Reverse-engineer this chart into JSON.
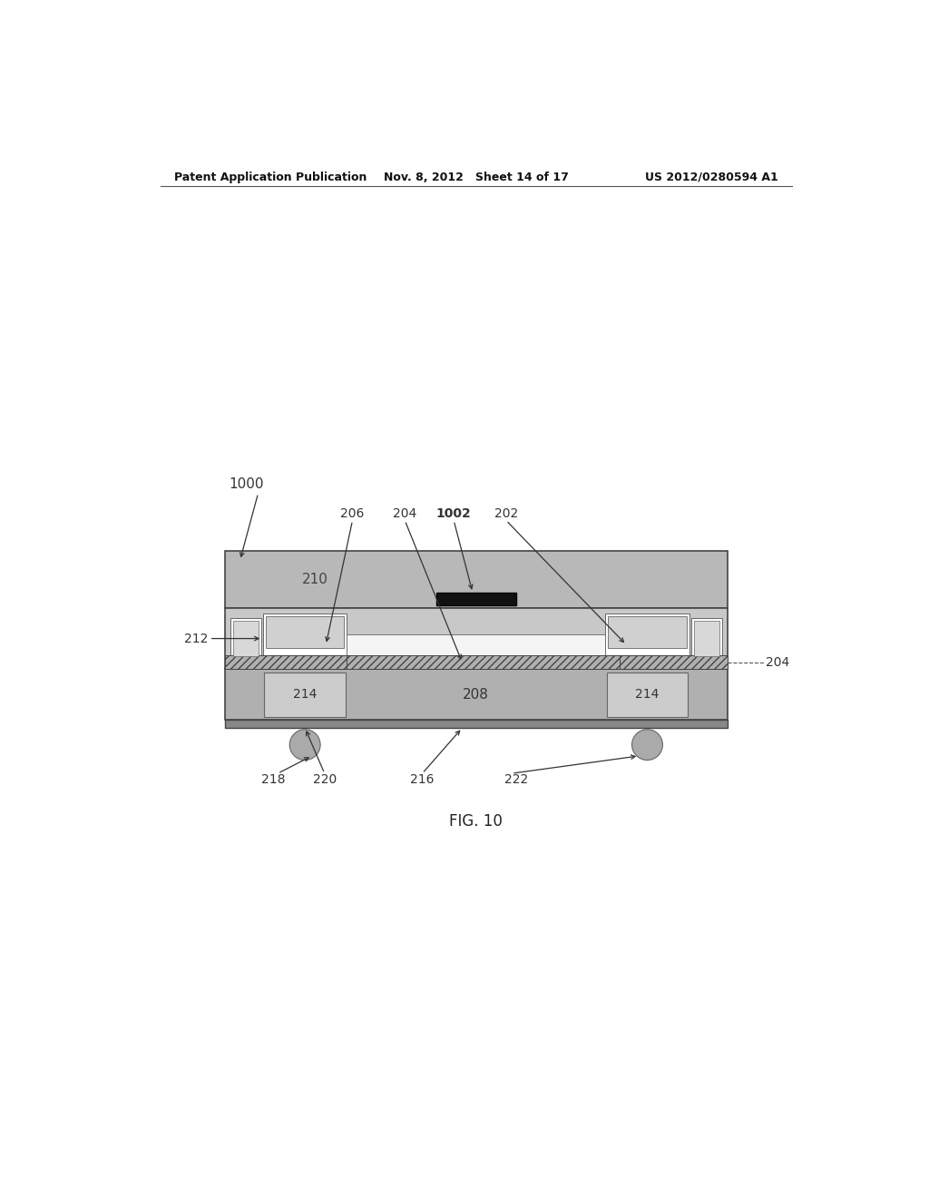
{
  "bg_color": "#ffffff",
  "header_left": "Patent Application Publication",
  "header_mid": "Nov. 8, 2012   Sheet 14 of 17",
  "header_right": "US 2012/0280594 A1",
  "fig_label": "FIG. 10",
  "colors": {
    "cap_gray": "#b8b8b8",
    "body_gray": "#c0c0c0",
    "substrate_gray": "#b0b0b0",
    "inner_gray": "#c8c8c8",
    "pillar_gray": "#c4c4c4",
    "white": "#ffffff",
    "black": "#111111",
    "dark_border": "#444444",
    "mid_border": "#666666",
    "solder": "#a8a8a8",
    "hatch_face": "#a0a0a0",
    "electrode_top": "#d8d8d8",
    "bottom_dark": "#888888"
  }
}
